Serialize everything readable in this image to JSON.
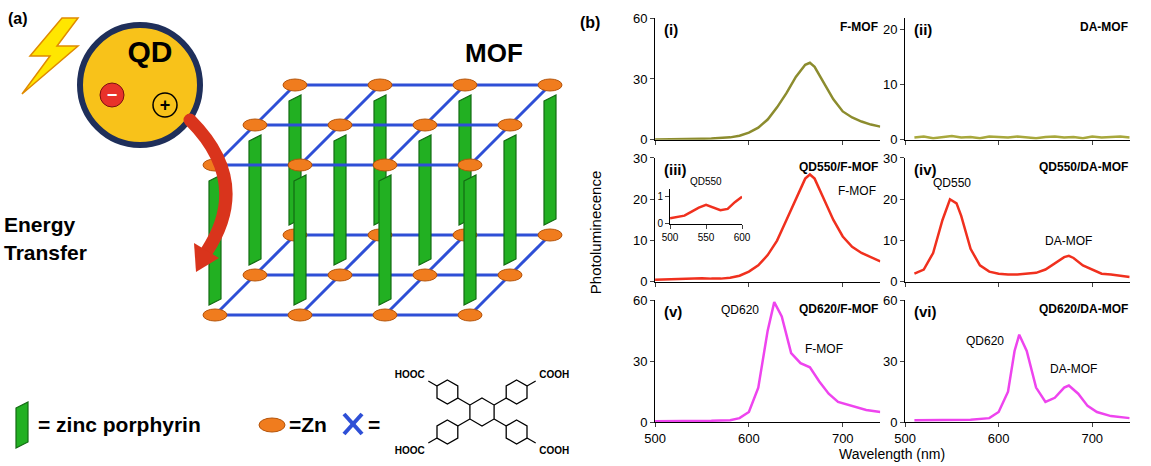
{
  "diagram": {
    "label": "(a)",
    "qd": "QD",
    "electron": "−",
    "hole": "+",
    "transfer": "Energy Transfer",
    "mof": "MOF",
    "porphyrin_key": "= zinc porphyrin",
    "zn_key": "=Zn",
    "linker_key": "=",
    "linker_groups": [
      "HOOC",
      "COOH",
      "HOOC",
      "COOH"
    ]
  },
  "figure": {
    "label": "(b)",
    "x_label": "Wavelength (nm)",
    "y_label": "Photoluminecence"
  },
  "chart_data": [
    {
      "type": "line",
      "label": "(i)",
      "title": "F-MOF",
      "color": "#8c8c2e",
      "x": [
        500,
        510,
        520,
        530,
        540,
        550,
        560,
        570,
        580,
        590,
        600,
        610,
        620,
        630,
        640,
        650,
        660,
        665,
        670,
        680,
        690,
        700,
        710,
        720,
        730,
        740
      ],
      "values": [
        0.2,
        0.2,
        0.3,
        0.3,
        0.4,
        0.5,
        0.6,
        0.8,
        1.2,
        2,
        3.5,
        6,
        10,
        16,
        23,
        31,
        37,
        38,
        36,
        28,
        20,
        14,
        11,
        9,
        7.5,
        6.5
      ],
      "xlim": [
        500,
        740
      ],
      "xticks": [
        500,
        600,
        700
      ],
      "ylim": [
        0,
        60
      ],
      "yticks": [
        0,
        30,
        60
      ],
      "tick_labels": "y"
    },
    {
      "type": "line",
      "label": "(ii)",
      "title": "DA-MOF",
      "color": "#a8a83c",
      "x": [
        510,
        520,
        530,
        540,
        550,
        560,
        570,
        580,
        590,
        600,
        610,
        620,
        630,
        640,
        650,
        660,
        670,
        680,
        690,
        700,
        710,
        720,
        730,
        740
      ],
      "values": [
        0.4,
        0.6,
        0.3,
        0.5,
        0.7,
        0.4,
        0.5,
        0.3,
        0.6,
        0.5,
        0.4,
        0.6,
        0.5,
        0.3,
        0.5,
        0.6,
        0.4,
        0.5,
        0.3,
        0.6,
        0.4,
        0.5,
        0.6,
        0.4
      ],
      "xlim": [
        500,
        740
      ],
      "xticks": [
        500,
        600,
        700
      ],
      "ylim": [
        0,
        22
      ],
      "yticks": [
        0,
        10,
        20
      ],
      "tick_labels": "y"
    },
    {
      "type": "line",
      "label": "(iii)",
      "title": "QD550/F-MOF",
      "color": "#f0301e",
      "x": [
        500,
        510,
        520,
        530,
        540,
        550,
        560,
        570,
        580,
        590,
        600,
        610,
        620,
        630,
        640,
        650,
        660,
        665,
        670,
        680,
        690,
        700,
        710,
        720,
        730,
        740
      ],
      "values": [
        0.5,
        0.6,
        0.6,
        0.7,
        0.8,
        0.9,
        0.8,
        0.8,
        1,
        1.5,
        2.5,
        4,
        6.5,
        10,
        15,
        20,
        25,
        26,
        25,
        20,
        15,
        11,
        8.5,
        7,
        6,
        5
      ],
      "xlim": [
        500,
        740
      ],
      "xticks": [
        500,
        600,
        700
      ],
      "ylim": [
        0,
        30
      ],
      "yticks": [
        0,
        10,
        20,
        30
      ],
      "tick_labels": "y",
      "annotations": [
        {
          "text": "F-MOF",
          "x": 715,
          "y": 22
        }
      ],
      "inset": {
        "type": "line",
        "title": "QD550",
        "color": "#f0301e",
        "x": [
          500,
          510,
          520,
          530,
          540,
          550,
          560,
          570,
          580,
          590,
          600
        ],
        "values": [
          0.2,
          0.25,
          0.3,
          0.45,
          0.6,
          0.7,
          0.6,
          0.5,
          0.55,
          0.8,
          1.0
        ],
        "xlim": [
          500,
          600
        ],
        "xticks": [
          500,
          550,
          600
        ],
        "ylim": [
          0,
          1.3
        ],
        "yticks": [
          0,
          1
        ]
      }
    },
    {
      "type": "line",
      "label": "(iv)",
      "title": "QD550/DA-MOF",
      "color": "#f0301e",
      "x": [
        510,
        520,
        530,
        540,
        548,
        555,
        560,
        570,
        580,
        590,
        600,
        610,
        620,
        630,
        640,
        650,
        660,
        670,
        675,
        680,
        690,
        700,
        710,
        720,
        730,
        740
      ],
      "values": [
        2,
        3,
        7,
        15,
        20,
        19,
        16,
        8,
        4,
        2.5,
        2,
        1.8,
        1.8,
        2,
        2.2,
        3,
        4.5,
        6,
        6.3,
        5.8,
        4,
        3,
        2,
        1.8,
        1.5,
        1.2
      ],
      "xlim": [
        500,
        740
      ],
      "xticks": [
        500,
        600,
        700
      ],
      "ylim": [
        0,
        30
      ],
      "yticks": [
        0,
        10,
        20,
        30
      ],
      "tick_labels": "y",
      "annotations": [
        {
          "text": "QD550",
          "x": 550,
          "y": 24
        },
        {
          "text": "DA-MOF",
          "x": 675,
          "y": 10
        }
      ]
    },
    {
      "type": "line",
      "label": "(v)",
      "title": "QD620/F-MOF",
      "color": "#ee44ee",
      "x": [
        500,
        520,
        540,
        560,
        580,
        590,
        600,
        610,
        620,
        627,
        635,
        645,
        655,
        665,
        675,
        685,
        695,
        710,
        725,
        740
      ],
      "values": [
        0.5,
        0.5,
        0.6,
        0.7,
        1,
        2,
        5,
        17,
        45,
        59,
        52,
        34,
        29,
        27,
        20,
        14,
        10,
        8,
        6,
        5
      ],
      "xlim": [
        500,
        740
      ],
      "xticks": [
        500,
        600,
        700
      ],
      "ylim": [
        0,
        60
      ],
      "yticks": [
        0,
        30,
        60
      ],
      "annotations": [
        {
          "text": "QD620",
          "x": 590,
          "y": 55
        },
        {
          "text": "F-MOF",
          "x": 680,
          "y": 36
        }
      ]
    },
    {
      "type": "line",
      "label": "(vi)",
      "title": "QD620/DA-MOF",
      "color": "#ee44ee",
      "x": [
        510,
        540,
        570,
        590,
        600,
        610,
        617,
        622,
        630,
        640,
        650,
        660,
        670,
        675,
        685,
        695,
        705,
        720,
        740
      ],
      "values": [
        1,
        1,
        1.2,
        2,
        5,
        15,
        35,
        43,
        35,
        17,
        10,
        12,
        17,
        18,
        14,
        8,
        5,
        3,
        2
      ],
      "xlim": [
        500,
        740
      ],
      "xticks": [
        500,
        600,
        700
      ],
      "ylim": [
        0,
        60
      ],
      "yticks": [
        0,
        30,
        60
      ],
      "annotations": [
        {
          "text": "QD620",
          "x": 585,
          "y": 40
        },
        {
          "text": "DA-MOF",
          "x": 680,
          "y": 26
        }
      ]
    }
  ]
}
